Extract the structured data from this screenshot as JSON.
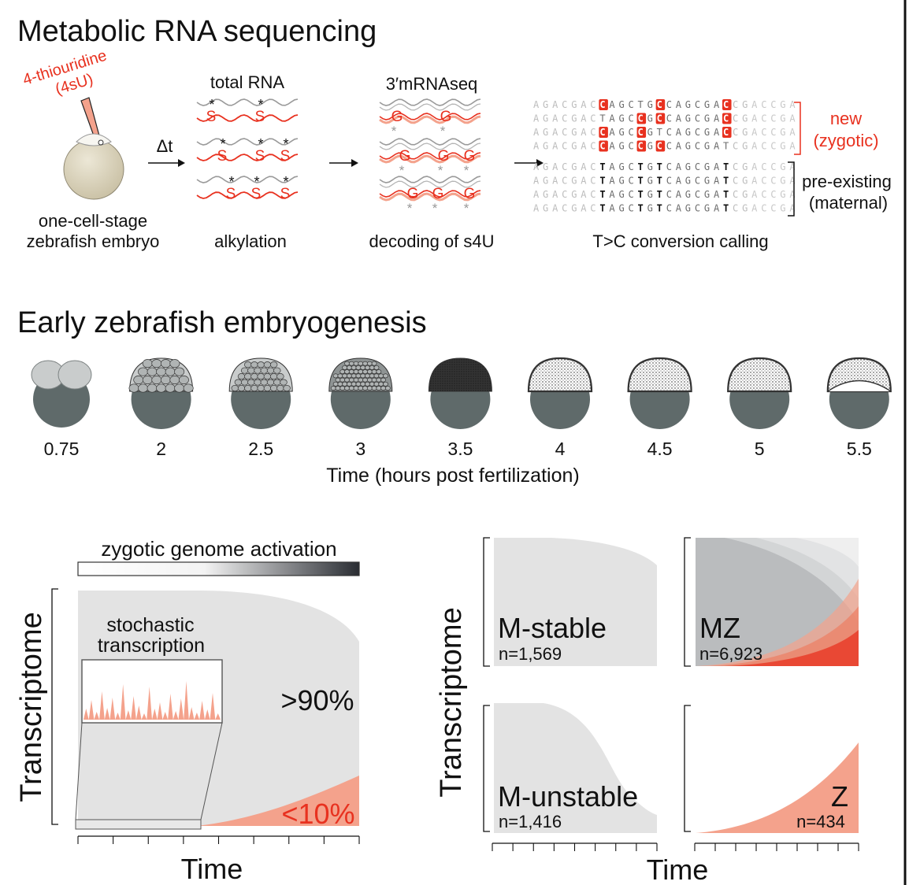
{
  "section1": {
    "title": "Metabolic RNA sequencing",
    "label_4su_line1": "4-thiouridine",
    "label_4su_line2": "(4sU)",
    "embryo_label_line1": "one-cell-stage",
    "embryo_label_line2": "zebrafish embryo",
    "delta_t": "Δt",
    "total_rna": "total RNA",
    "alkylation": "alkylation",
    "mrnaseq": "3′mRNAseq",
    "decoding": "decoding of s4U",
    "conversion": "T>C conversion calling",
    "marker_s": "S",
    "marker_g": "G",
    "marker_star": "*",
    "new_line1": "new",
    "new_line2": "(zygotic)",
    "pre_line1": "pre-existing",
    "pre_line2": "(maternal)",
    "new_reads": [
      "AGACGACCAGCTGCCAGCGACCGACCGA",
      "AGACGACTAGCCGCCAGCGACCGACCGA",
      "AGACGACCAGCCGTCAGCGACCGACCGA",
      "AGACGACCAGCCGCCAGCGATCGACCGA"
    ],
    "old_reads": [
      "AGACGACTAGCTGTCAGCGATCGACCGA",
      "AGACGACTAGCTGTCAGCGATCGACCGA",
      "AGACGACTAGCTGTCAGCGATCGACCGA",
      "AGACGACTAGCTGTCAGCGATCGACCGA"
    ]
  },
  "section2": {
    "title": "Early zebrafish embryogenesis",
    "stages": [
      "0.75",
      "2",
      "2.5",
      "3",
      "3.5",
      "4",
      "4.5",
      "5",
      "5.5"
    ],
    "xlabel": "Time (hours post fertilization)"
  },
  "section3": {
    "zga_label": "zygotic genome activation",
    "ylabel": "Transcriptome",
    "xlabel": "Time",
    "stochastic_line1": "stochastic",
    "stochastic_line2": "transcription",
    "maternal_fraction": ">90%",
    "zygotic_fraction": "<10%"
  },
  "section4": {
    "ylabel": "Transcriptome",
    "xlabel": "Time",
    "classes": [
      {
        "name": "M-stable",
        "n": "n=1,569"
      },
      {
        "name": "MZ",
        "n": "n=6,923"
      },
      {
        "name": "M-unstable",
        "n": "n=1,416"
      },
      {
        "name": "Z",
        "n": "n=434"
      }
    ]
  },
  "colors": {
    "red": "#e8311f",
    "salmon": "#f4a28c",
    "grey_area": "#e3e3e3",
    "yolk": "#5f6a6a",
    "cell": "#c9cccc"
  }
}
